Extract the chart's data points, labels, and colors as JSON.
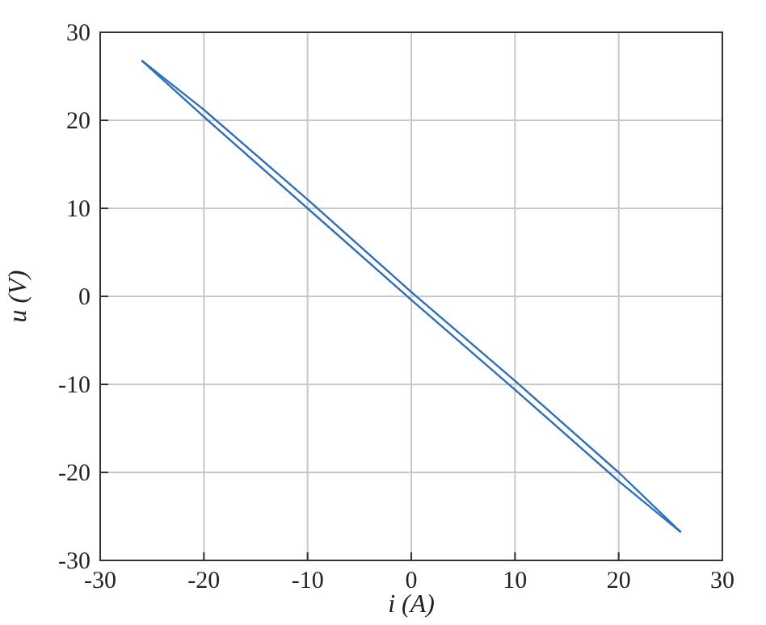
{
  "chart_data": {
    "type": "line",
    "xlabel": "i (A)",
    "ylabel": "u (V)",
    "xlim": [
      -30,
      30
    ],
    "xticks": [
      -30,
      -20,
      -10,
      0,
      10,
      20,
      30
    ],
    "ylim": [
      -30,
      30
    ],
    "yticks": [
      -30,
      -20,
      -10,
      0,
      10,
      20,
      30
    ],
    "grid": true,
    "marker": "none",
    "line_style": "solid",
    "series": [
      {
        "color": "#2e6fba",
        "x": [
          -26,
          -20,
          -10,
          0,
          10,
          20,
          26
        ],
        "values": [
          26.8,
          21.2,
          11,
          0.5,
          -9.6,
          -20,
          -26.8
        ]
      },
      {
        "color": "#2e6fba",
        "x": [
          -26,
          -20,
          -10,
          0,
          10,
          20,
          26
        ],
        "values": [
          26.8,
          20.4,
          10,
          -0.4,
          -10.6,
          -21,
          -26.8
        ]
      }
    ]
  }
}
